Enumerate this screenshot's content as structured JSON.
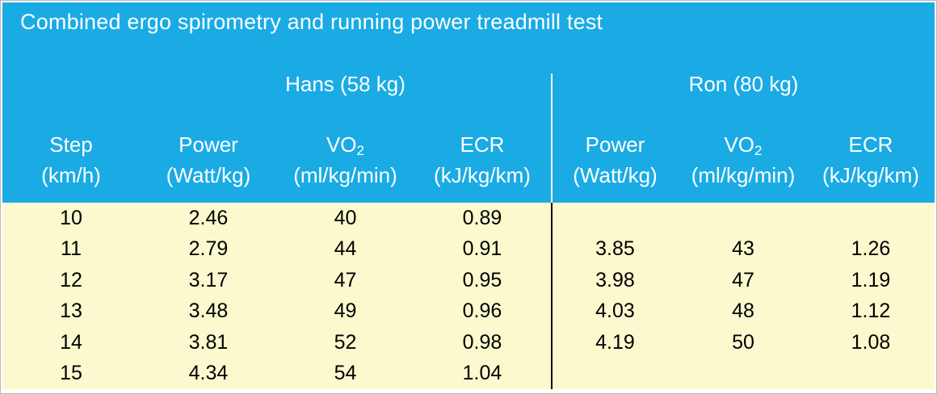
{
  "title": "Combined ergo spirometry and running power treadmill test",
  "colors": {
    "header_bg": "#1AABE5",
    "header_text": "#FFFFFF",
    "body_bg": "#FCF9CF",
    "body_text": "#000000",
    "divider_header": "#FFFFFF",
    "divider_body": "#000000"
  },
  "groups": [
    {
      "label": "Hans (58 kg)"
    },
    {
      "label": "Ron (80 kg)"
    }
  ],
  "columns": [
    {
      "name": "Step",
      "name_sub": "",
      "unit": "(km/h)"
    },
    {
      "name": "Power",
      "name_sub": "",
      "unit": "(Watt/kg)"
    },
    {
      "name": "VO",
      "name_sub": "2",
      "unit": "(ml/kg/min)"
    },
    {
      "name": "ECR",
      "name_sub": "",
      "unit": "(kJ/kg/km)"
    },
    {
      "name": "Power",
      "name_sub": "",
      "unit": "(Watt/kg)"
    },
    {
      "name": "VO",
      "name_sub": "2",
      "unit": "(ml/kg/min)"
    },
    {
      "name": "ECR",
      "name_sub": "",
      "unit": "(kJ/kg/km)"
    }
  ],
  "rows": [
    {
      "cells": [
        "10",
        "2.46",
        "40",
        "0.89",
        "",
        "",
        ""
      ]
    },
    {
      "cells": [
        "11",
        "2.79",
        "44",
        "0.91",
        "3.85",
        "43",
        "1.26"
      ]
    },
    {
      "cells": [
        "12",
        "3.17",
        "47",
        "0.95",
        "3.98",
        "47",
        "1.19"
      ]
    },
    {
      "cells": [
        "13",
        "3.48",
        "49",
        "0.96",
        "4.03",
        "48",
        "1.12"
      ]
    },
    {
      "cells": [
        "14",
        "3.81",
        "52",
        "0.98",
        "4.19",
        "50",
        "1.08"
      ]
    },
    {
      "cells": [
        "15",
        "4.34",
        "54",
        "1.04",
        "",
        "",
        ""
      ]
    }
  ],
  "chart_data": {
    "type": "table",
    "title": "Combined ergo spirometry and running power treadmill test",
    "groups": [
      "Hans (58 kg)",
      "Ron (80 kg)"
    ],
    "columns": [
      "Step (km/h)",
      "Hans Power (Watt/kg)",
      "Hans VO2 (ml/kg/min)",
      "Hans ECR (kJ/kg/km)",
      "Ron Power (Watt/kg)",
      "Ron VO2 (ml/kg/min)",
      "Ron ECR (kJ/kg/km)"
    ],
    "rows": [
      [
        10,
        2.46,
        40,
        0.89,
        null,
        null,
        null
      ],
      [
        11,
        2.79,
        44,
        0.91,
        3.85,
        43,
        1.26
      ],
      [
        12,
        3.17,
        47,
        0.95,
        3.98,
        47,
        1.19
      ],
      [
        13,
        3.48,
        49,
        0.96,
        4.03,
        48,
        1.12
      ],
      [
        14,
        3.81,
        52,
        0.98,
        4.19,
        50,
        1.08
      ],
      [
        15,
        4.34,
        54,
        1.04,
        null,
        null,
        null
      ]
    ]
  }
}
